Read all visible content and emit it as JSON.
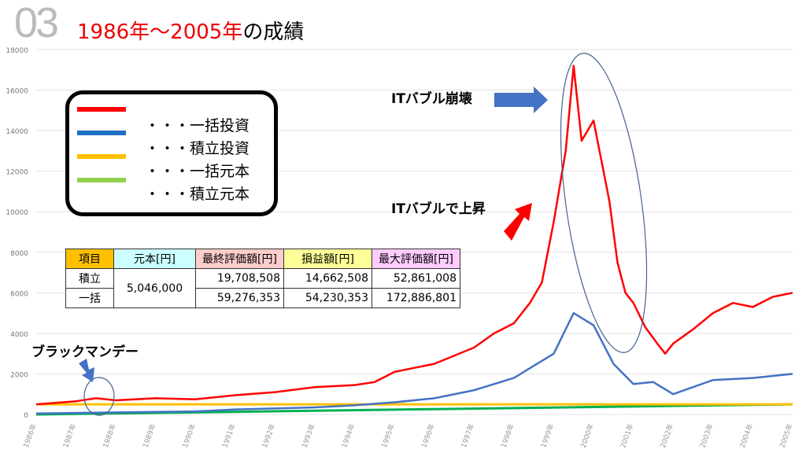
{
  "header": {
    "number": "03",
    "title_red": "1986年〜2005年",
    "title_black": "の成績"
  },
  "legend": [
    {
      "label": "・・・一括投資",
      "color": "#ff0000"
    },
    {
      "label": "・・・積立投資",
      "color": "#1f6fc5"
    },
    {
      "label": "・・・一括元本",
      "color": "#ffc000"
    },
    {
      "label": "・・・積立元本",
      "color": "#92d050"
    }
  ],
  "table": {
    "headers": [
      "項目",
      "元本[円]",
      "最終評価額[円]",
      "損益額[円]",
      "最大評価額[円]"
    ],
    "header_colors": [
      "#ffc000",
      "#ccffff",
      "#ffcccc",
      "#ffff99",
      "#ffccff"
    ],
    "principal": "5,046,000",
    "rows": [
      {
        "label": "積立",
        "final": "19,708,508",
        "profit": "14,662,508",
        "max": "52,861,008"
      },
      {
        "label": "一括",
        "final": "59,276,353",
        "profit": "54,230,353",
        "max": "172,886,801"
      }
    ]
  },
  "annotations": {
    "crash": "ITバブル崩壊",
    "rise": "ITバブルで上昇",
    "black_monday": "ブラックマンデー"
  },
  "chart_data": {
    "type": "line",
    "ylim": [
      0,
      18000
    ],
    "xlim": [
      1986,
      2005
    ],
    "yticks": [
      0,
      2000,
      4000,
      6000,
      8000,
      10000,
      12000,
      14000,
      16000,
      18000
    ],
    "xticks": [
      "1986年",
      "1987年",
      "1988年",
      "1989年",
      "1990年",
      "1991年",
      "1992年",
      "1993年",
      "1994年",
      "1995年",
      "1996年",
      "1997年",
      "1998年",
      "1999年",
      "2000年",
      "2001年",
      "2002年",
      "2003年",
      "2004年",
      "2005年"
    ],
    "series": [
      {
        "name": "一括投資",
        "color": "#ff0000",
        "x": [
          1986,
          1987,
          1987.5,
          1988,
          1989,
          1990,
          1991,
          1992,
          1993,
          1994,
          1994.5,
          1995,
          1995.5,
          1996,
          1997,
          1997.5,
          1998,
          1998.4,
          1998.7,
          1999,
          1999.3,
          1999.5,
          1999.7,
          2000,
          2000.2,
          2000.4,
          2000.6,
          2000.8,
          2001,
          2001.3,
          2001.6,
          2001.8,
          2002,
          2002.5,
          2003,
          2003.5,
          2004,
          2004.5,
          2005
        ],
        "y": [
          500,
          650,
          800,
          700,
          800,
          750,
          950,
          1100,
          1350,
          1450,
          1600,
          2100,
          2300,
          2500,
          3300,
          4000,
          4500,
          5500,
          6500,
          9500,
          13000,
          17200,
          13500,
          14500,
          12500,
          10500,
          7500,
          6000,
          5500,
          4300,
          3500,
          3000,
          3500,
          4200,
          5000,
          5500,
          5300,
          5800,
          6000
        ]
      },
      {
        "name": "積立投資",
        "color": "#4472c4",
        "x": [
          1986,
          1988,
          1990,
          1991,
          1993,
          1994,
          1995,
          1996,
          1997,
          1998,
          1999,
          1999.5,
          2000,
          2000.5,
          2001,
          2001.5,
          2002,
          2003,
          2004,
          2005
        ],
        "y": [
          50,
          100,
          150,
          250,
          350,
          450,
          600,
          800,
          1200,
          1800,
          3000,
          5000,
          4400,
          2500,
          1500,
          1600,
          1000,
          1700,
          1800,
          2000
        ]
      },
      {
        "name": "一括元本",
        "color": "#ffc000",
        "x": [
          1986,
          2005
        ],
        "y": [
          500,
          500
        ]
      },
      {
        "name": "積立元本",
        "color": "#00b050",
        "x": [
          1986,
          2005
        ],
        "y": [
          0,
          500
        ]
      }
    ]
  }
}
